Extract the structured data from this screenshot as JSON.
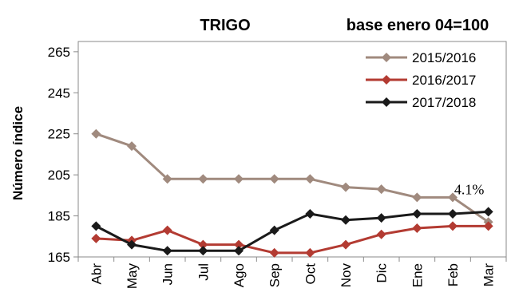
{
  "chart_data": {
    "type": "line",
    "title": "TRIGO",
    "subtitle": "base enero 04=100",
    "ylabel": "Número índice",
    "xlabel": "",
    "categories": [
      "Abr",
      "May",
      "Jun",
      "Jul",
      "Ago",
      "Sep",
      "Oct",
      "Nov",
      "Dic",
      "Ene",
      "Feb",
      "Mar"
    ],
    "ylim": [
      165,
      270
    ],
    "yticks": [
      165,
      185,
      205,
      225,
      245,
      265
    ],
    "grid": false,
    "legend_position": "top-right",
    "series": [
      {
        "name": "2015/2016",
        "color": "#A08A7E",
        "values": [
          225,
          219,
          203,
          203,
          203,
          203,
          203,
          199,
          198,
          194,
          194,
          182
        ]
      },
      {
        "name": "2016/2017",
        "color": "#B33B32",
        "values": [
          174,
          173,
          178,
          171,
          171,
          167,
          167,
          171,
          176,
          179,
          180,
          180
        ]
      },
      {
        "name": "2017/2018",
        "color": "#1A1A1A",
        "values": [
          180,
          171,
          168,
          168,
          168,
          178,
          186,
          183,
          184,
          186,
          186,
          187
        ]
      }
    ],
    "annotations": [
      {
        "text": "4.1%",
        "category": "Mar",
        "series": "2017/2018"
      }
    ]
  }
}
